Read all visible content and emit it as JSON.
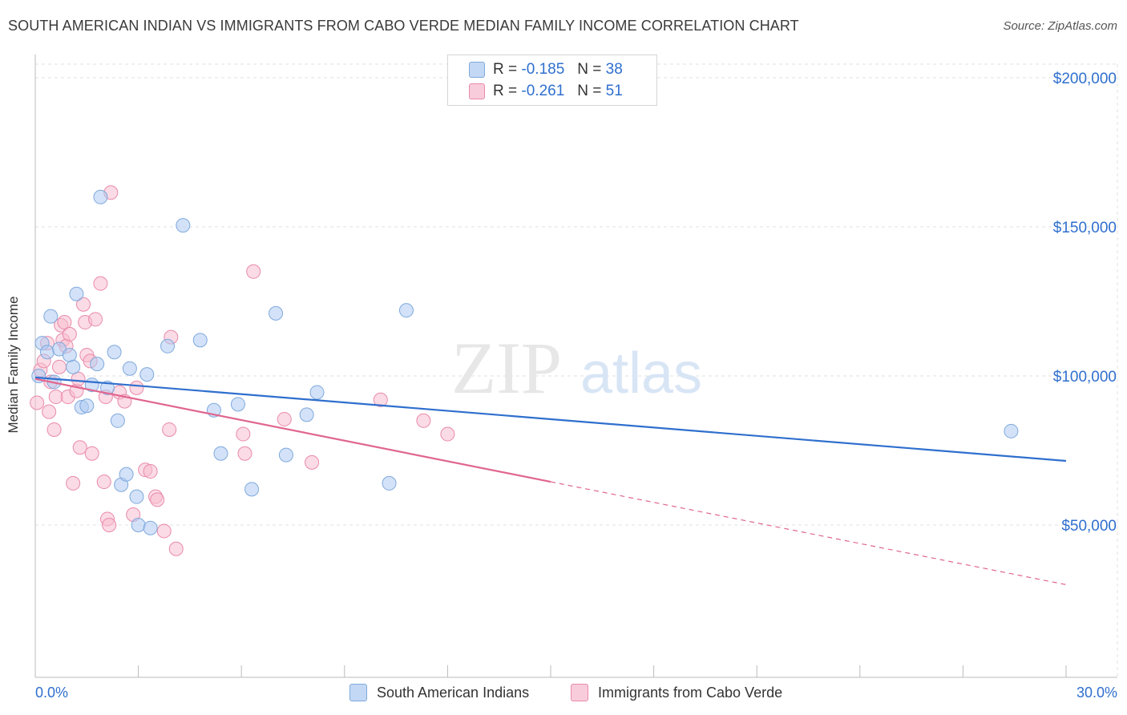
{
  "title": "SOUTH AMERICAN INDIAN VS IMMIGRANTS FROM CABO VERDE MEDIAN FAMILY INCOME CORRELATION CHART",
  "source": "Source: ZipAtlas.com",
  "watermark": {
    "zip": "ZIP",
    "atlas": "atlas"
  },
  "legend": {
    "series1": {
      "r_label": "R =",
      "r_value": "-0.185",
      "n_label": "N =",
      "n_value": "38"
    },
    "series2": {
      "r_label": "R =",
      "r_value": "-0.261",
      "n_label": "N =",
      "n_value": "51"
    }
  },
  "colors": {
    "blue_fill": "#aecbf2",
    "blue_stroke": "#7fa9dc",
    "blue_line": "#2f6fce",
    "pink_fill": "#f7bdd0",
    "pink_stroke": "#e98aab",
    "pink_line": "#e0668f",
    "grid": "#e2e2e2",
    "tick_label": "#2f6fce"
  },
  "chart_data": {
    "type": "scatter",
    "xlabel": "",
    "ylabel": "Median Family Income",
    "xlim": [
      0,
      30
    ],
    "ylim": [
      0,
      210000
    ],
    "x_tick_labels": {
      "min": "0.0%",
      "max": "30.0%"
    },
    "y_ticks": [
      {
        "value": 50000,
        "label": "$50,000"
      },
      {
        "value": 100000,
        "label": "$100,000"
      },
      {
        "value": 150000,
        "label": "$150,000"
      },
      {
        "value": 200000,
        "label": "$200,000"
      }
    ],
    "series": [
      {
        "name": "South American Indians",
        "color": "blue",
        "trend": {
          "x0": 0,
          "y0": 99500,
          "x1": 30,
          "y1": 71500,
          "dashed_from": null
        },
        "points": [
          [
            0.1,
            100000
          ],
          [
            0.2,
            111000
          ],
          [
            0.35,
            108000
          ],
          [
            0.45,
            120000
          ],
          [
            0.55,
            98000
          ],
          [
            0.7,
            109000
          ],
          [
            1.0,
            107000
          ],
          [
            1.1,
            103000
          ],
          [
            1.2,
            127500
          ],
          [
            1.35,
            89500
          ],
          [
            1.5,
            90000
          ],
          [
            1.65,
            97000
          ],
          [
            1.8,
            104000
          ],
          [
            1.9,
            160000
          ],
          [
            2.1,
            96000
          ],
          [
            2.3,
            108000
          ],
          [
            2.4,
            85000
          ],
          [
            2.5,
            63500
          ],
          [
            2.65,
            67000
          ],
          [
            2.75,
            102500
          ],
          [
            2.95,
            59500
          ],
          [
            3.0,
            50000
          ],
          [
            3.25,
            100500
          ],
          [
            3.35,
            49000
          ],
          [
            3.85,
            110000
          ],
          [
            4.3,
            150500
          ],
          [
            4.8,
            112000
          ],
          [
            5.2,
            88500
          ],
          [
            5.4,
            74000
          ],
          [
            5.9,
            90500
          ],
          [
            6.3,
            62000
          ],
          [
            7.0,
            121000
          ],
          [
            7.3,
            73500
          ],
          [
            7.9,
            87000
          ],
          [
            8.2,
            94500
          ],
          [
            10.3,
            64000
          ],
          [
            10.8,
            122000
          ],
          [
            28.4,
            81500
          ]
        ]
      },
      {
        "name": "Immigrants from Cabo Verde",
        "color": "pink",
        "trend": {
          "x0": 0,
          "y0": 99000,
          "x1": 30,
          "y1": 30000,
          "dashed_from": 15
        },
        "points": [
          [
            0.05,
            91000
          ],
          [
            0.15,
            102000
          ],
          [
            0.25,
            105000
          ],
          [
            0.35,
            111000
          ],
          [
            0.45,
            98000
          ],
          [
            0.55,
            82000
          ],
          [
            0.6,
            93000
          ],
          [
            0.7,
            103000
          ],
          [
            0.75,
            117000
          ],
          [
            0.8,
            112000
          ],
          [
            0.85,
            118000
          ],
          [
            0.9,
            110000
          ],
          [
            0.95,
            93000
          ],
          [
            1.0,
            114000
          ],
          [
            1.1,
            64000
          ],
          [
            1.2,
            95000
          ],
          [
            1.3,
            76000
          ],
          [
            1.4,
            124000
          ],
          [
            1.45,
            118000
          ],
          [
            1.5,
            107000
          ],
          [
            1.6,
            105000
          ],
          [
            1.65,
            74000
          ],
          [
            1.75,
            119000
          ],
          [
            1.9,
            131000
          ],
          [
            2.0,
            64500
          ],
          [
            2.05,
            93000
          ],
          [
            2.1,
            52000
          ],
          [
            2.15,
            50000
          ],
          [
            2.2,
            161500
          ],
          [
            2.45,
            94500
          ],
          [
            2.6,
            91500
          ],
          [
            2.85,
            53500
          ],
          [
            3.2,
            68500
          ],
          [
            3.35,
            68000
          ],
          [
            3.5,
            59500
          ],
          [
            3.55,
            58500
          ],
          [
            3.75,
            48000
          ],
          [
            3.9,
            82000
          ],
          [
            3.95,
            113000
          ],
          [
            4.1,
            42000
          ],
          [
            6.05,
            80500
          ],
          [
            6.1,
            74000
          ],
          [
            6.35,
            135000
          ],
          [
            7.25,
            85500
          ],
          [
            8.05,
            71000
          ],
          [
            10.05,
            92000
          ],
          [
            11.3,
            85000
          ],
          [
            12.0,
            80500
          ],
          [
            1.25,
            99000
          ],
          [
            0.4,
            88000
          ],
          [
            2.95,
            96000
          ]
        ]
      }
    ]
  }
}
